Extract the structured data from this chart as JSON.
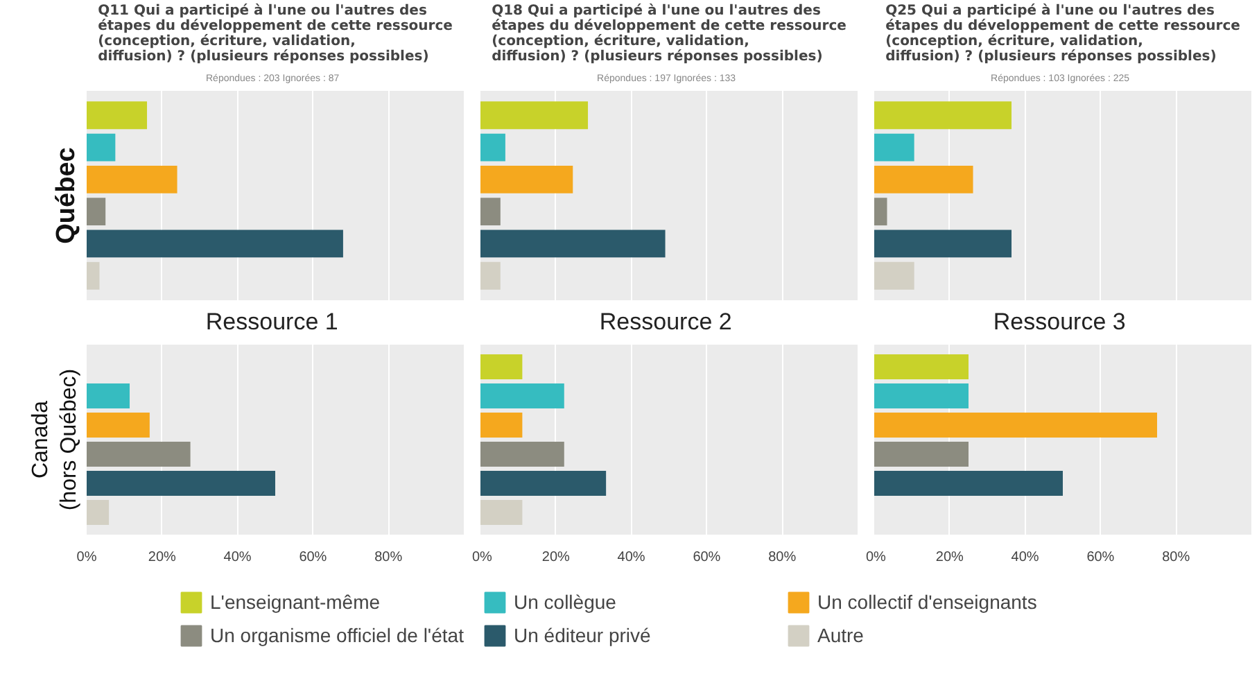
{
  "chart_data": [
    {
      "type": "bar",
      "orientation": "horizontal",
      "title": "Q11 Qui a participé à l'une ou l'autres des étapes du développement de cette ressource (conception, écriture, validation, diffusion) ? (plusieurs réponses possibles)",
      "subtitle": "Répondues : 203   Ignorées : 87",
      "xlabel": "Ressource  1",
      "ylabel": "Québec",
      "categories": [
        null
      ],
      "xlim": [
        0,
        100
      ],
      "xticks": [
        {
          "value": 0,
          "label": "0%"
        },
        {
          "value": 20,
          "label": "20%"
        },
        {
          "value": 40,
          "label": "40%"
        },
        {
          "value": 60,
          "label": "60%"
        },
        {
          "value": 80,
          "label": "80%"
        }
      ],
      "grid": "x",
      "tick_labels": false,
      "legend": "bottom",
      "series": [
        {
          "name": "L'enseignant-même",
          "color": "#c8d22a",
          "values": [
            16
          ]
        },
        {
          "name": "Un collègue",
          "color": "#36bcc0",
          "values": [
            7.6
          ]
        },
        {
          "name": "Un collectif d'enseignants",
          "color": "#f5a81e",
          "values": [
            24
          ]
        },
        {
          "name": "Un organisme officiel de l'état",
          "color": "#8c8c80",
          "values": [
            5
          ]
        },
        {
          "name": "Un éditeur privé",
          "color": "#2b5a6b",
          "values": [
            68
          ]
        },
        {
          "name": "Autre",
          "color": "#d3d0c4",
          "values": [
            3.4
          ]
        }
      ]
    },
    {
      "type": "bar",
      "orientation": "horizontal",
      "title": "Q18 Qui a participé à l'une ou l'autres des étapes du développement de cette ressource (conception, écriture, validation, diffusion) ? (plusieurs réponses possibles)",
      "subtitle": "Répondues : 197   Ignorées : 133",
      "xlabel": "Ressource  2",
      "categories": [
        null
      ],
      "xlim": [
        0,
        100
      ],
      "xticks": [
        {
          "value": 0,
          "label": "0%"
        },
        {
          "value": 20,
          "label": "20%"
        },
        {
          "value": 40,
          "label": "40%"
        },
        {
          "value": 60,
          "label": "60%"
        },
        {
          "value": 80,
          "label": "80%"
        }
      ],
      "grid": "x",
      "tick_labels": false,
      "series": [
        {
          "color": "#c8d22a",
          "values": [
            28.5
          ]
        },
        {
          "color": "#36bcc0",
          "values": [
            6.6
          ]
        },
        {
          "color": "#f5a81e",
          "values": [
            24.5
          ]
        },
        {
          "color": "#8c8c80",
          "values": [
            5.3
          ]
        },
        {
          "color": "#2b5a6b",
          "values": [
            49
          ]
        },
        {
          "color": "#d3d0c4",
          "values": [
            5.3
          ]
        }
      ]
    },
    {
      "type": "bar",
      "orientation": "horizontal",
      "title": "Q25 Qui a participé à l'une ou l'autres des étapes du développement de cette ressource (conception, écriture, validation, diffusion) ? (plusieurs réponses possibles)",
      "subtitle": "Répondues : 103   Ignorées : 225",
      "xlabel": "Ressource  3",
      "categories": [
        null
      ],
      "xlim": [
        0,
        100
      ],
      "xticks": [
        {
          "value": 0,
          "label": "0%"
        },
        {
          "value": 20,
          "label": "20%"
        },
        {
          "value": 40,
          "label": "40%"
        },
        {
          "value": 60,
          "label": "60%"
        },
        {
          "value": 80,
          "label": "80%"
        }
      ],
      "grid": "x",
      "tick_labels": false,
      "series": [
        {
          "color": "#c8d22a",
          "values": [
            36.4
          ]
        },
        {
          "color": "#36bcc0",
          "values": [
            10.6
          ]
        },
        {
          "color": "#f5a81e",
          "values": [
            26.2
          ]
        },
        {
          "color": "#8c8c80",
          "values": [
            3.4
          ]
        },
        {
          "color": "#2b5a6b",
          "values": [
            36.4
          ]
        },
        {
          "color": "#d3d0c4",
          "values": [
            10.6
          ]
        }
      ]
    },
    {
      "type": "bar",
      "orientation": "horizontal",
      "ylabel": "Canada\n(hors Québec)",
      "categories": [
        null
      ],
      "xlim": [
        0,
        100
      ],
      "xticks": [
        {
          "value": 0,
          "label": "0%"
        },
        {
          "value": 20,
          "label": "20%"
        },
        {
          "value": 40,
          "label": "40%"
        },
        {
          "value": 60,
          "label": "60%"
        },
        {
          "value": 80,
          "label": "80%"
        }
      ],
      "grid": "x",
      "tick_labels": "x",
      "series": [
        {
          "color": "#c8d22a",
          "values": [
            0
          ]
        },
        {
          "color": "#36bcc0",
          "values": [
            11.4
          ]
        },
        {
          "color": "#f5a81e",
          "values": [
            16.7
          ]
        },
        {
          "color": "#8c8c80",
          "values": [
            27.5
          ]
        },
        {
          "color": "#2b5a6b",
          "values": [
            50
          ]
        },
        {
          "color": "#d3d0c4",
          "values": [
            5.9
          ]
        }
      ]
    },
    {
      "type": "bar",
      "orientation": "horizontal",
      "categories": [
        null
      ],
      "xlim": [
        0,
        100
      ],
      "xticks": [
        {
          "value": 0,
          "label": "0%"
        },
        {
          "value": 20,
          "label": "20%"
        },
        {
          "value": 40,
          "label": "40%"
        },
        {
          "value": 60,
          "label": "60%"
        },
        {
          "value": 80,
          "label": "80%"
        }
      ],
      "grid": "x",
      "tick_labels": "x",
      "series": [
        {
          "color": "#c8d22a",
          "values": [
            11.1
          ]
        },
        {
          "color": "#36bcc0",
          "values": [
            22.2
          ]
        },
        {
          "color": "#f5a81e",
          "values": [
            11.1
          ]
        },
        {
          "color": "#8c8c80",
          "values": [
            22.2
          ]
        },
        {
          "color": "#2b5a6b",
          "values": [
            33.3
          ]
        },
        {
          "color": "#d3d0c4",
          "values": [
            11.1
          ]
        }
      ]
    },
    {
      "type": "bar",
      "orientation": "horizontal",
      "categories": [
        null
      ],
      "xlim": [
        0,
        100
      ],
      "xticks": [
        {
          "value": 0,
          "label": "0%"
        },
        {
          "value": 20,
          "label": "20%"
        },
        {
          "value": 40,
          "label": "40%"
        },
        {
          "value": 60,
          "label": "60%"
        },
        {
          "value": 80,
          "label": "80%"
        }
      ],
      "grid": "x",
      "tick_labels": "x",
      "series": [
        {
          "color": "#c8d22a",
          "values": [
            25
          ]
        },
        {
          "color": "#36bcc0",
          "values": [
            25
          ]
        },
        {
          "color": "#f5a81e",
          "values": [
            75
          ]
        },
        {
          "color": "#8c8c80",
          "values": [
            25
          ]
        },
        {
          "color": "#2b5a6b",
          "values": [
            50
          ]
        },
        {
          "color": "#d3d0c4",
          "values": [
            0
          ]
        }
      ]
    }
  ]
}
